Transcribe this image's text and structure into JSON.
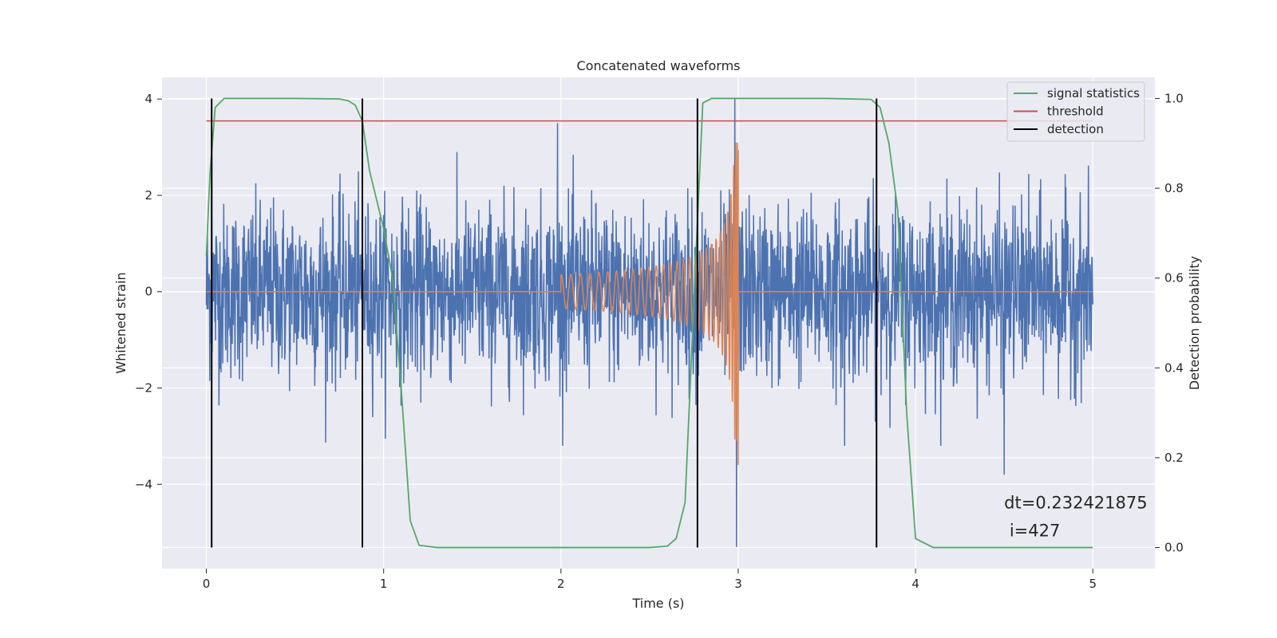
{
  "chart_data": {
    "type": "line",
    "title": "Concatenated waveforms",
    "xlabel": "Time (s)",
    "ylabel": "Whitened strain",
    "y2label": "Detection probability",
    "xlim": [
      -0.25,
      5.35
    ],
    "ylim": [
      -5.75,
      4.45
    ],
    "y2lim": [
      -0.047,
      1.047
    ],
    "xticks": [
      0,
      1,
      2,
      3,
      4,
      5
    ],
    "yticks": [
      -4,
      -2,
      0,
      2,
      4
    ],
    "y2ticks": [
      0.0,
      0.2,
      0.4,
      0.6,
      0.8,
      1.0
    ],
    "xtick_labels": [
      "0",
      "1",
      "2",
      "3",
      "4",
      "5"
    ],
    "ytick_labels": [
      "−4",
      "−2",
      "0",
      "2",
      "4"
    ],
    "y2tick_labels": [
      "0.0",
      "0.2",
      "0.4",
      "0.6",
      "0.8",
      "1.0"
    ],
    "grid": true,
    "legend_position": "top-right",
    "series": [
      {
        "name": "",
        "axis": "left",
        "color": "#4c72b0",
        "kind": "noisy strain",
        "x_range": [
          0,
          5
        ],
        "baseline_amplitude": 1.2,
        "max": 4.0,
        "min": -5.3,
        "peaks": [
          {
            "x": 0.03,
            "y": 3.35
          },
          {
            "x": 1.98,
            "y": 3.5
          },
          {
            "x": 2.98,
            "y": 4.0
          },
          {
            "x": 2.99,
            "y": -5.3
          },
          {
            "x": 4.5,
            "y": -3.8
          },
          {
            "x": 3.6,
            "y": -3.2
          }
        ]
      },
      {
        "name": "",
        "axis": "left",
        "color": "#dd8452",
        "kind": "injected chirp",
        "x_range": [
          0,
          5
        ],
        "chirp_start": 2.0,
        "chirp_end": 3.0,
        "chirp_start_amplitude": 0.35,
        "chirp_end_amplitude": 3.1,
        "chirp_end_min": -3.6
      },
      {
        "name": "signal statistics",
        "axis": "right",
        "color": "#55a868",
        "x": [
          0.0,
          0.02,
          0.05,
          0.1,
          0.15,
          0.5,
          0.75,
          0.8,
          0.84,
          0.88,
          0.92,
          1.0,
          1.05,
          1.1,
          1.15,
          1.2,
          1.3,
          2.5,
          2.6,
          2.65,
          2.7,
          2.75,
          2.8,
          2.85,
          3.5,
          3.75,
          3.8,
          3.85,
          3.9,
          3.95,
          4.0,
          4.1,
          5.0
        ],
        "values": [
          0.65,
          0.83,
          0.98,
          1.0,
          1.0,
          1.0,
          0.999,
          0.995,
          0.985,
          0.95,
          0.84,
          0.71,
          0.6,
          0.35,
          0.06,
          0.005,
          0.0,
          0.0,
          0.003,
          0.02,
          0.1,
          0.55,
          0.99,
          1.0,
          1.0,
          0.998,
          0.98,
          0.9,
          0.75,
          0.3,
          0.02,
          0.0,
          0.0
        ]
      },
      {
        "name": "threshold",
        "axis": "right",
        "color": "#c44e52",
        "value": 0.95,
        "x_range": [
          0,
          5
        ]
      },
      {
        "name": "detection",
        "axis": "right",
        "color": "#000000",
        "x": [
          0.03,
          0.88,
          2.77,
          3.78
        ],
        "y_range": [
          0.0,
          1.0
        ]
      }
    ],
    "annotations": [
      {
        "text": "dt=0.232421875",
        "x": 4.5,
        "y": -4.4
      },
      {
        "text": " i=427",
        "x": 4.5,
        "y": -4.9
      }
    ]
  }
}
